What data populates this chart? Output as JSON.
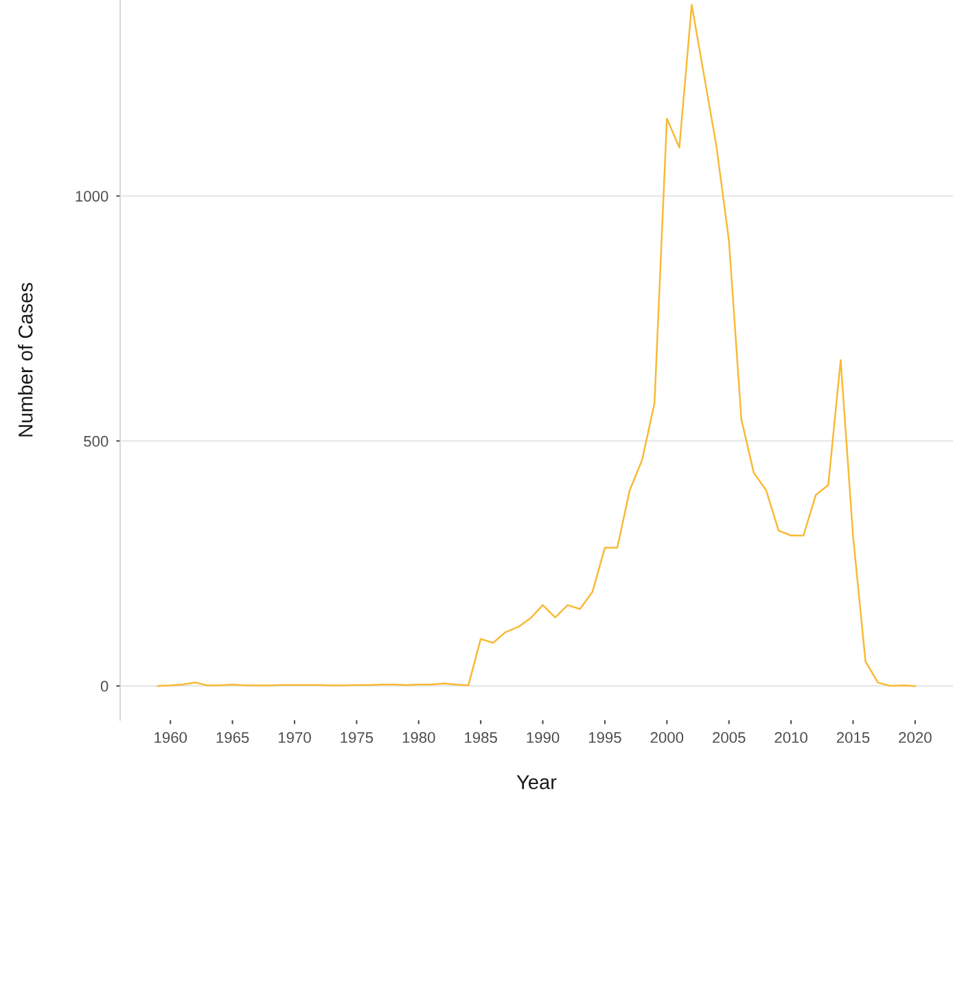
{
  "chart_data": {
    "type": "line",
    "xlabel": "Year",
    "ylabel": "Number of Cases",
    "x": [
      1959,
      1960,
      1961,
      1962,
      1963,
      1964,
      1965,
      1966,
      1967,
      1968,
      1969,
      1970,
      1971,
      1972,
      1973,
      1974,
      1975,
      1976,
      1977,
      1978,
      1979,
      1980,
      1981,
      1982,
      1983,
      1984,
      1985,
      1986,
      1987,
      1988,
      1989,
      1990,
      1991,
      1992,
      1993,
      1994,
      1995,
      1996,
      1997,
      1998,
      1999,
      2000,
      2001,
      2002,
      2003,
      2004,
      2005,
      2006,
      2007,
      2008,
      2009,
      2010,
      2011,
      2012,
      2013,
      2014,
      2015,
      2016,
      2017,
      2018,
      2019,
      2020
    ],
    "series": [
      {
        "color": "#f9b934",
        "values": [
          0,
          1,
          3,
          7,
          1,
          1,
          3,
          1,
          1,
          1,
          2,
          2,
          2,
          2,
          1,
          1,
          2,
          2,
          3,
          3,
          2,
          3,
          3,
          5,
          3,
          1,
          96,
          88,
          110,
          120,
          138,
          165,
          140,
          165,
          157,
          192,
          282,
          282,
          399,
          461,
          577,
          1158,
          1099,
          1390,
          1245,
          1100,
          908,
          544,
          435,
          399,
          317,
          307,
          307,
          390,
          410,
          665,
          305,
          50,
          7,
          0,
          1,
          0
        ]
      }
    ],
    "xlim": [
      1955.95,
      2023.05
    ],
    "xticks": [
      1960,
      1965,
      1970,
      1975,
      1980,
      1985,
      1990,
      1995,
      2000,
      2005,
      2010,
      2015,
      2020
    ],
    "ylim": [
      -70,
      1400
    ],
    "yticks": [
      0,
      500,
      1000
    ],
    "grid": "y",
    "legend": false,
    "marker": "none",
    "line_style": "solid"
  }
}
